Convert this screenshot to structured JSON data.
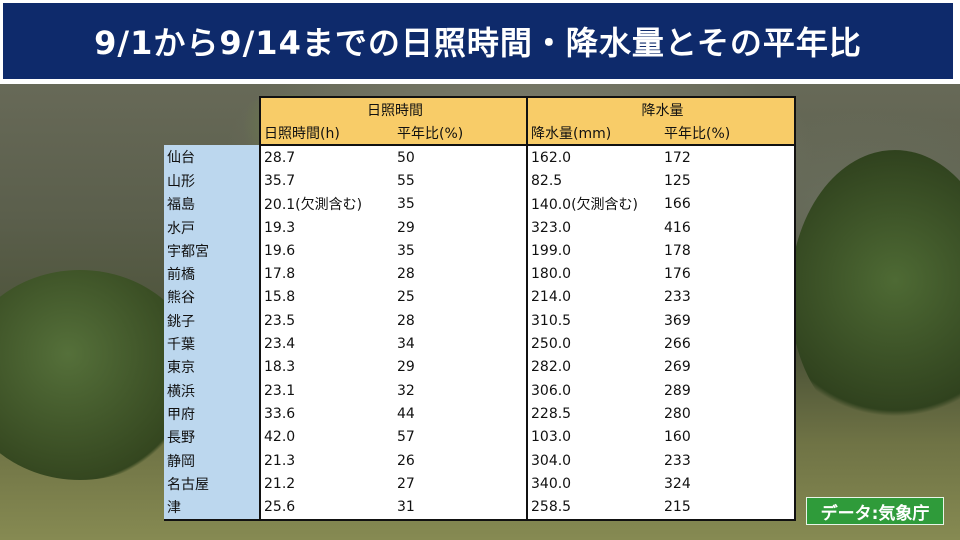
{
  "title": "9/1から9/14までの日照時間・降水量とその平年比",
  "credit": "データ:気象庁",
  "columns": {
    "sunshine_group": "日照時間",
    "rain_group": "降水量",
    "sunshine_hours": "日照時間(h)",
    "sunshine_ratio": "平年比(%)",
    "rain_mm": "降水量(mm)",
    "rain_ratio": "平年比(%)"
  },
  "rows": [
    {
      "city": "仙台",
      "sun": "28.7",
      "sun_ratio": "50",
      "rain": "162.0",
      "rain_ratio": "172"
    },
    {
      "city": "山形",
      "sun": "35.7",
      "sun_ratio": "55",
      "rain": "82.5",
      "rain_ratio": "125"
    },
    {
      "city": "福島",
      "sun": "20.1(欠測含む)",
      "sun_ratio": "35",
      "rain": "140.0(欠測含む)",
      "rain_ratio": "166"
    },
    {
      "city": "水戸",
      "sun": "19.3",
      "sun_ratio": "29",
      "rain": "323.0",
      "rain_ratio": "416"
    },
    {
      "city": "宇都宮",
      "sun": "19.6",
      "sun_ratio": "35",
      "rain": "199.0",
      "rain_ratio": "178"
    },
    {
      "city": "前橋",
      "sun": "17.8",
      "sun_ratio": "28",
      "rain": "180.0",
      "rain_ratio": "176"
    },
    {
      "city": "熊谷",
      "sun": "15.8",
      "sun_ratio": "25",
      "rain": "214.0",
      "rain_ratio": "233"
    },
    {
      "city": "銚子",
      "sun": "23.5",
      "sun_ratio": "28",
      "rain": "310.5",
      "rain_ratio": "369"
    },
    {
      "city": "千葉",
      "sun": "23.4",
      "sun_ratio": "34",
      "rain": "250.0",
      "rain_ratio": "266"
    },
    {
      "city": "東京",
      "sun": "18.3",
      "sun_ratio": "29",
      "rain": "282.0",
      "rain_ratio": "269"
    },
    {
      "city": "横浜",
      "sun": "23.1",
      "sun_ratio": "32",
      "rain": "306.0",
      "rain_ratio": "289"
    },
    {
      "city": "甲府",
      "sun": "33.6",
      "sun_ratio": "44",
      "rain": "228.5",
      "rain_ratio": "280"
    },
    {
      "city": "長野",
      "sun": "42.0",
      "sun_ratio": "57",
      "rain": "103.0",
      "rain_ratio": "160"
    },
    {
      "city": "静岡",
      "sun": "21.3",
      "sun_ratio": "26",
      "rain": "304.0",
      "rain_ratio": "233"
    },
    {
      "city": "名古屋",
      "sun": "21.2",
      "sun_ratio": "27",
      "rain": "340.0",
      "rain_ratio": "324"
    },
    {
      "city": "津",
      "sun": "25.6",
      "sun_ratio": "31",
      "rain": "258.5",
      "rain_ratio": "215"
    }
  ]
}
